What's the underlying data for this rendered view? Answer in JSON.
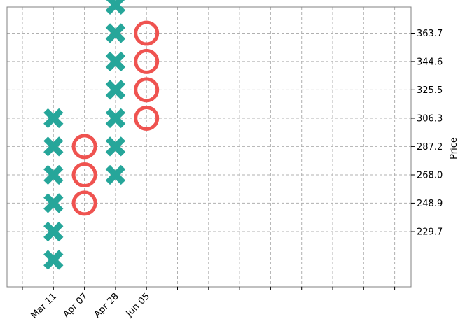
{
  "chart_data": {
    "type": "point-and-figure",
    "ylabel": "Price",
    "x_tick_labels": [
      "Mar 11",
      "Apr 07",
      "Apr 28",
      "Jun 05"
    ],
    "x_tick_count": 13,
    "y_ticks": [
      229.7,
      248.9,
      268.0,
      287.2,
      306.3,
      325.5,
      344.6,
      363.7
    ],
    "box_size": 19.14,
    "grid": true,
    "colors": {
      "x_up": "#26a69a",
      "o_down": "#ef5350",
      "grid": "#b0b0b0",
      "frame": "#808080"
    },
    "columns": [
      {
        "label": "Mar 11",
        "symbol": "X",
        "prices": [
          210.6,
          229.7,
          248.9,
          268.0,
          287.2,
          306.3
        ]
      },
      {
        "label": "Apr 07",
        "symbol": "O",
        "prices": [
          287.2,
          268.0,
          248.9
        ]
      },
      {
        "label": "Apr 28",
        "symbol": "X",
        "prices": [
          268.0,
          287.2,
          306.3,
          325.5,
          344.6,
          363.7,
          382.9
        ]
      },
      {
        "label": "Jun 05",
        "symbol": "O",
        "prices": [
          363.7,
          344.6,
          325.5,
          306.3
        ]
      }
    ]
  }
}
